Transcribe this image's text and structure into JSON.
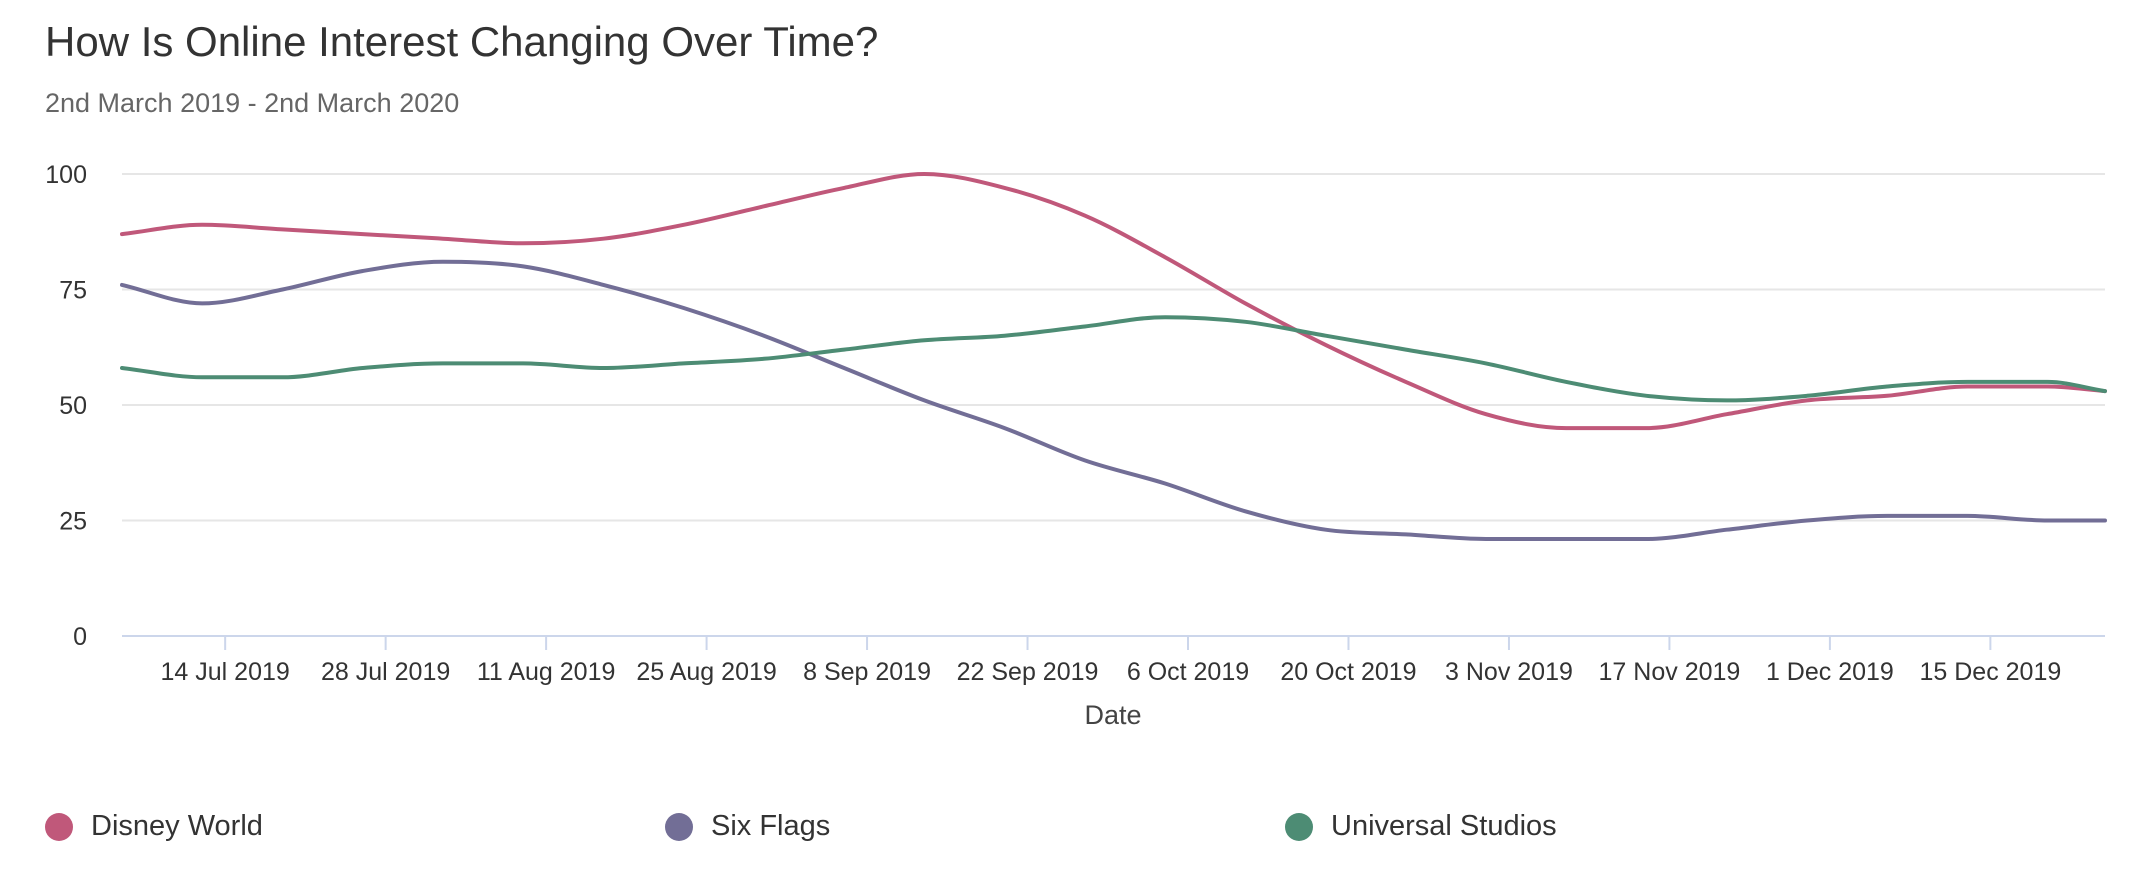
{
  "chart": {
    "title": "How Is Online Interest Changing Over Time?",
    "subtitle": "2nd March 2019 - 2nd March 2020"
  },
  "legend": [
    {
      "label": "Disney World",
      "color": "#c0587a"
    },
    {
      "label": "Six Flags",
      "color": "#726e96"
    },
    {
      "label": "Universal Studios",
      "color": "#4d8c74"
    }
  ],
  "chart_data": {
    "type": "line",
    "title": "How Is Online Interest Changing Over Time?",
    "subtitle": "2nd March 2019 - 2nd March 2020",
    "xlabel": "Date",
    "ylabel": "",
    "ylim": [
      0,
      100
    ],
    "y_ticks": [
      0,
      25,
      50,
      75,
      100
    ],
    "x_tick_labels": [
      "14 Jul 2019",
      "28 Jul 2019",
      "11 Aug 2019",
      "25 Aug 2019",
      "8 Sep 2019",
      "22 Sep 2019",
      "6 Oct 2019",
      "20 Oct 2019",
      "3 Nov 2019",
      "17 Nov 2019",
      "1 Dec 2019",
      "15 Dec 2019"
    ],
    "x_tick_dates": [
      "2019-07-14",
      "2019-07-28",
      "2019-08-11",
      "2019-08-25",
      "2019-09-08",
      "2019-09-22",
      "2019-10-06",
      "2019-10-20",
      "2019-11-03",
      "2019-11-17",
      "2019-12-01",
      "2019-12-15"
    ],
    "x_range": [
      "2019-07-05",
      "2019-12-25"
    ],
    "grid": true,
    "legend_position": "bottom",
    "x": [
      "2019-07-05",
      "2019-07-12",
      "2019-07-19",
      "2019-07-26",
      "2019-08-02",
      "2019-08-09",
      "2019-08-16",
      "2019-08-23",
      "2019-08-30",
      "2019-09-06",
      "2019-09-13",
      "2019-09-20",
      "2019-09-27",
      "2019-10-04",
      "2019-10-11",
      "2019-10-18",
      "2019-10-25",
      "2019-11-01",
      "2019-11-08",
      "2019-11-15",
      "2019-11-22",
      "2019-11-29",
      "2019-12-06",
      "2019-12-13",
      "2019-12-20",
      "2019-12-25"
    ],
    "series": [
      {
        "name": "Disney World",
        "color": "#c0587a",
        "values": [
          87,
          89,
          88,
          87,
          86,
          85,
          86,
          89,
          93,
          97,
          100,
          97,
          91,
          82,
          72,
          63,
          55,
          48,
          45,
          45,
          48,
          51,
          52,
          54,
          54,
          53
        ]
      },
      {
        "name": "Six Flags",
        "color": "#726e96",
        "values": [
          76,
          72,
          75,
          79,
          81,
          80,
          76,
          71,
          65,
          58,
          51,
          45,
          38,
          33,
          27,
          23,
          22,
          21,
          21,
          21,
          23,
          25,
          26,
          26,
          25,
          25
        ]
      },
      {
        "name": "Universal Studios",
        "color": "#4d8c74",
        "values": [
          58,
          56,
          56,
          58,
          59,
          59,
          58,
          59,
          60,
          62,
          64,
          65,
          67,
          69,
          68,
          65,
          62,
          59,
          55,
          52,
          51,
          52,
          54,
          55,
          55,
          53
        ]
      }
    ]
  }
}
